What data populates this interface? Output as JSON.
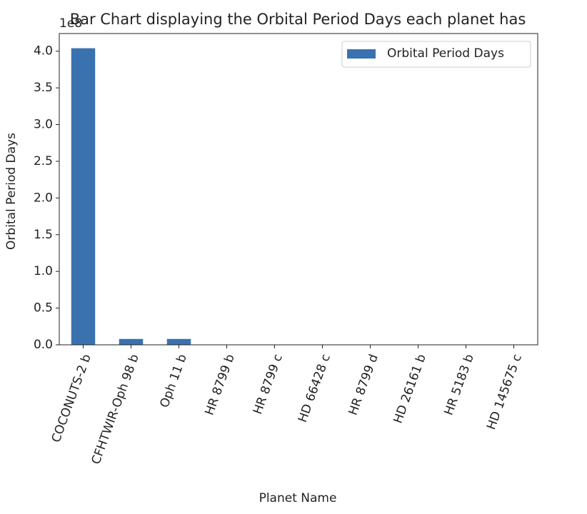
{
  "chart_data": {
    "type": "bar",
    "title": "Bar Chart displaying the Orbital Period Days each planet has",
    "x_label": "Planet Name",
    "y_label": "Orbital Period Days",
    "y_offset_label": "1e8",
    "categories": [
      "COCONUTS-2 b",
      "CFHTWIR-Oph 98 b",
      "Oph 11 b",
      "HR 8799 b",
      "HR 8799 c",
      "HD 66428 c",
      "HR 8799 d",
      "HD 26161 b",
      "HR 5183 b",
      "HD 145675 c"
    ],
    "series": [
      {
        "name": "Orbital Period Days",
        "color": "#3a72b0",
        "values": [
          4.04,
          0.08,
          0.08,
          0,
          0,
          0,
          0,
          0,
          0,
          0
        ]
      }
    ],
    "ylim": [
      0,
      4.24
    ],
    "yticks": [
      {
        "value": 0,
        "label": "0.0"
      },
      {
        "value": 0.5,
        "label": "0.5"
      },
      {
        "value": 1,
        "label": "1.0"
      },
      {
        "value": 1.5,
        "label": "1.5"
      },
      {
        "value": 2,
        "label": "2.0"
      },
      {
        "value": 2.5,
        "label": "2.5"
      },
      {
        "value": 3,
        "label": "3.0"
      },
      {
        "value": 3.5,
        "label": "3.5"
      },
      {
        "value": 4,
        "label": "4.0"
      }
    ],
    "legend": "upper right",
    "grid": false
  }
}
